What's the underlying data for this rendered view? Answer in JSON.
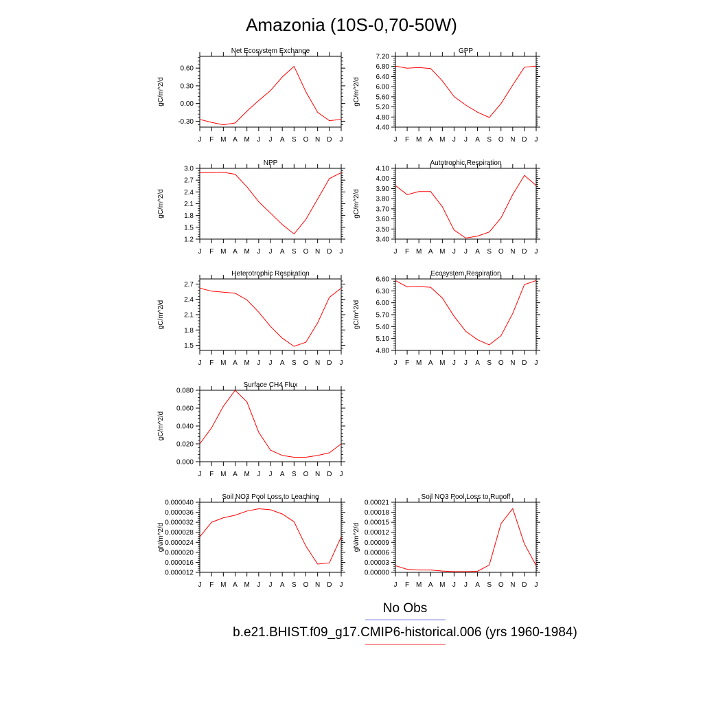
{
  "page_title": "Amazonia (10S-0,70-50W)",
  "months": [
    "J",
    "F",
    "M",
    "A",
    "M",
    "J",
    "J",
    "A",
    "S",
    "O",
    "N",
    "D",
    "J"
  ],
  "legend": {
    "obs_label": "No Obs",
    "obs_color": "#8a8aee",
    "model_label": "b.e21.BHIST.f09_g17.CMIP6-historical.006 (yrs 1960-1984)",
    "model_color": "#ee3333"
  },
  "line_color": "#ff0000",
  "chart_data": [
    {
      "type": "line",
      "title": "Net Ecosystem Exchange",
      "ylabel": "gC/m^2/d",
      "ylim": [
        -0.4,
        0.8
      ],
      "yticks": [
        "-0.30",
        "0.00",
        "0.30",
        "0.60"
      ],
      "ytick_values": [
        -0.3,
        0.0,
        0.3,
        0.6
      ],
      "values": [
        -0.27,
        -0.32,
        -0.36,
        -0.33,
        -0.13,
        0.05,
        0.22,
        0.45,
        0.63,
        0.2,
        -0.15,
        -0.29,
        -0.27
      ]
    },
    {
      "type": "line",
      "title": "GPP",
      "ylabel": "gC/m^2/d",
      "ylim": [
        4.4,
        7.2
      ],
      "yticks": [
        "4.40",
        "4.80",
        "5.20",
        "5.60",
        "6.00",
        "6.40",
        "6.80",
        "7.20"
      ],
      "ytick_values": [
        4.4,
        4.8,
        5.2,
        5.6,
        6.0,
        6.4,
        6.8,
        7.2
      ],
      "values": [
        6.81,
        6.73,
        6.76,
        6.72,
        6.23,
        5.61,
        5.27,
        4.99,
        4.78,
        5.33,
        6.06,
        6.77,
        6.81
      ]
    },
    {
      "type": "line",
      "title": "NPP",
      "ylabel": "gC/m^2/d",
      "ylim": [
        1.2,
        3.0
      ],
      "yticks": [
        "1.2",
        "1.5",
        "1.8",
        "2.1",
        "2.4",
        "2.7",
        "3.0"
      ],
      "ytick_values": [
        1.2,
        1.5,
        1.8,
        2.1,
        2.4,
        2.7,
        3.0
      ],
      "values": [
        2.89,
        2.89,
        2.9,
        2.85,
        2.53,
        2.15,
        1.86,
        1.57,
        1.33,
        1.7,
        2.22,
        2.74,
        2.89
      ]
    },
    {
      "type": "line",
      "title": "Autotrophic Respiration",
      "ylabel": "gC/m^2/d",
      "ylim": [
        3.4,
        4.1
      ],
      "yticks": [
        "3.40",
        "3.50",
        "3.60",
        "3.70",
        "3.80",
        "3.90",
        "4.00",
        "4.10"
      ],
      "ytick_values": [
        3.4,
        3.5,
        3.6,
        3.7,
        3.8,
        3.9,
        4.0,
        4.1
      ],
      "values": [
        3.93,
        3.84,
        3.87,
        3.87,
        3.72,
        3.49,
        3.41,
        3.43,
        3.47,
        3.61,
        3.84,
        4.03,
        3.93
      ]
    },
    {
      "type": "line",
      "title": "Heterotrophic Respiration",
      "ylabel": "gC/m^2/d",
      "ylim": [
        1.4,
        2.8
      ],
      "yticks": [
        "1.5",
        "1.8",
        "2.1",
        "2.4",
        "2.7"
      ],
      "ytick_values": [
        1.5,
        1.8,
        2.1,
        2.4,
        2.7
      ],
      "values": [
        2.62,
        2.56,
        2.54,
        2.52,
        2.39,
        2.15,
        1.87,
        1.64,
        1.48,
        1.56,
        1.94,
        2.44,
        2.62
      ]
    },
    {
      "type": "line",
      "title": "Ecosystem Respiration",
      "ylabel": "gC/m^2/d",
      "ylim": [
        4.8,
        6.6
      ],
      "yticks": [
        "4.80",
        "5.10",
        "5.40",
        "5.70",
        "6.00",
        "6.30",
        "6.60"
      ],
      "ytick_values": [
        4.8,
        5.1,
        5.4,
        5.7,
        6.0,
        6.3,
        6.6
      ],
      "values": [
        6.56,
        6.4,
        6.41,
        6.39,
        6.12,
        5.66,
        5.28,
        5.07,
        4.94,
        5.17,
        5.73,
        6.46,
        6.56
      ]
    },
    {
      "type": "line",
      "title": "Surface CH4 Flux",
      "ylabel": "gC/m^2/d",
      "ylim": [
        0.0,
        0.08
      ],
      "yticks": [
        "0.000",
        "0.020",
        "0.040",
        "0.060",
        "0.080"
      ],
      "ytick_values": [
        0.0,
        0.02,
        0.04,
        0.06,
        0.08
      ],
      "values": [
        0.02,
        0.038,
        0.062,
        0.08,
        0.067,
        0.033,
        0.013,
        0.007,
        0.005,
        0.005,
        0.007,
        0.01,
        0.02
      ]
    },
    {
      "type": "line",
      "title": "Soil NO3 Pool Loss to Leaching",
      "ylabel": "gN/m^2/d",
      "ylim": [
        1.2e-05,
        4e-05
      ],
      "yticks": [
        "0.000012",
        "0.000016",
        "0.000020",
        "0.000024",
        "0.000028",
        "0.000032",
        "0.000036",
        "0.000040"
      ],
      "ytick_values": [
        1.2e-05,
        1.6e-05,
        2e-05,
        2.4e-05,
        2.8e-05,
        3.2e-05,
        3.6e-05,
        4e-05
      ],
      "values": [
        2.62e-05,
        3.2e-05,
        3.38e-05,
        3.48e-05,
        3.65e-05,
        3.74e-05,
        3.7e-05,
        3.53e-05,
        3.22e-05,
        2.25e-05,
        1.53e-05,
        1.58e-05,
        2.62e-05
      ]
    },
    {
      "type": "line",
      "title": "Soil NO3 Pool Loss to Runoff",
      "ylabel": "gN/m^2/d",
      "ylim": [
        0.0,
        0.00021
      ],
      "yticks": [
        "0.00000",
        "0.00003",
        "0.00006",
        "0.00009",
        "0.00012",
        "0.00015",
        "0.00018",
        "0.00021"
      ],
      "ytick_values": [
        0.0,
        3e-05,
        6e-05,
        9e-05,
        0.00012,
        0.00015,
        0.00018,
        0.00021
      ],
      "values": [
        2e-05,
        9e-06,
        7e-06,
        7e-06,
        4e-06,
        2e-06,
        2e-06,
        3e-06,
        2.2e-05,
        0.000146,
        0.000191,
        8.5e-05,
        2e-05
      ]
    }
  ]
}
